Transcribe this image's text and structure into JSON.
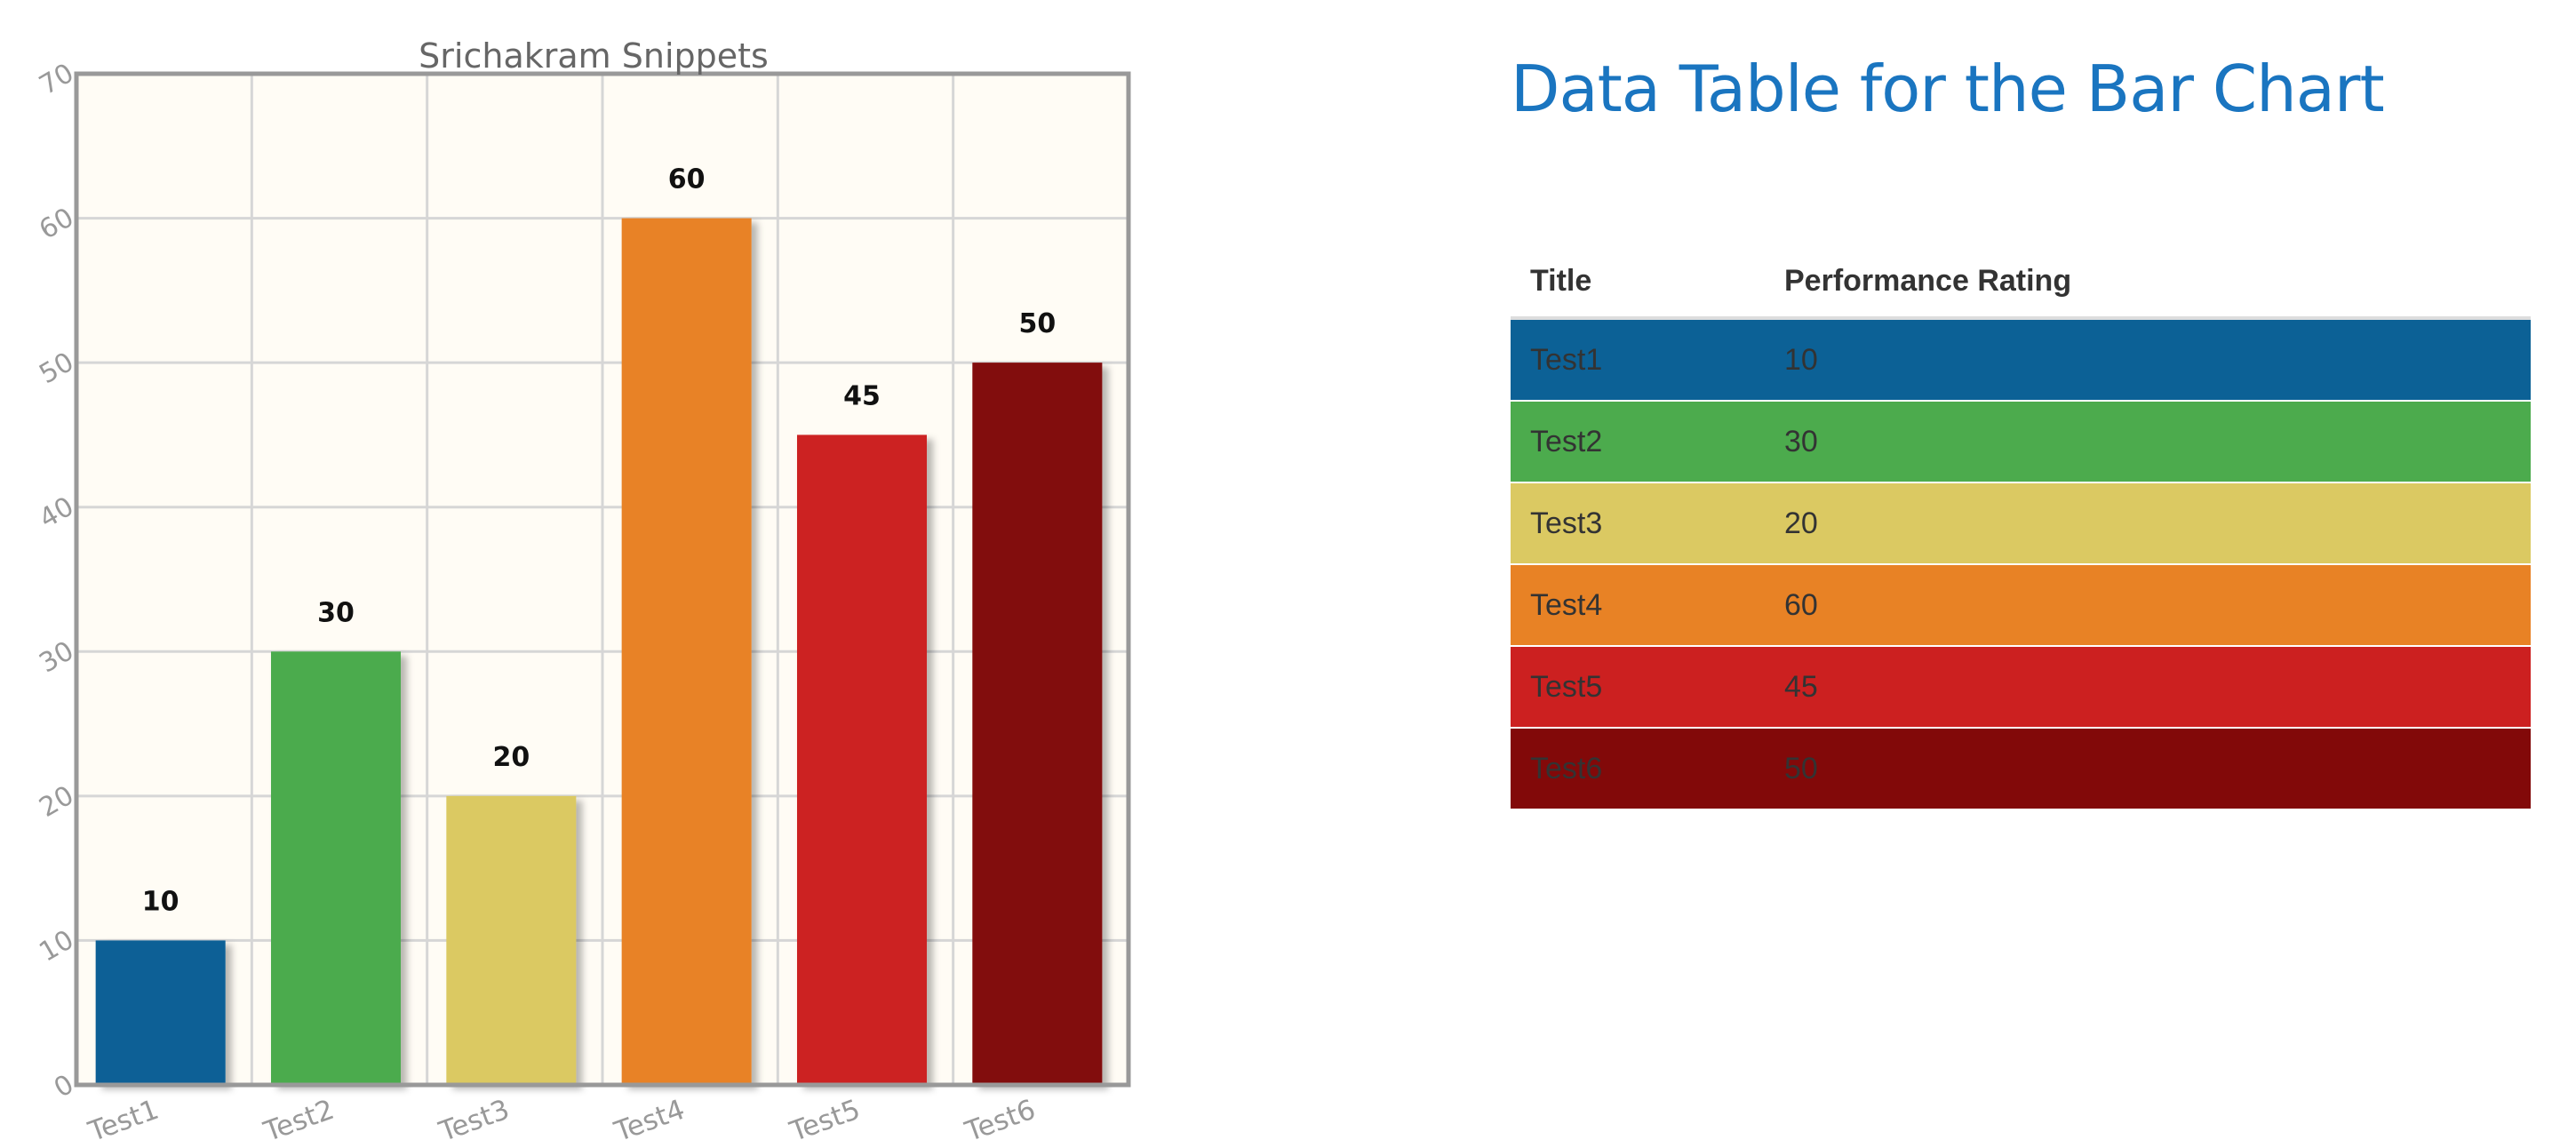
{
  "chart_data": {
    "type": "bar",
    "title": "Srichakram Snippets",
    "categories": [
      "Test1",
      "Test2",
      "Test3",
      "Test4",
      "Test5",
      "Test6"
    ],
    "values": [
      10,
      30,
      20,
      60,
      45,
      50
    ],
    "colors": [
      "#0c6196",
      "#4cab4d",
      "#dbc962",
      "#e88225",
      "#cc2020",
      "#820909"
    ],
    "ylim": [
      0,
      70
    ],
    "yticks": [
      0,
      10,
      20,
      30,
      40,
      50,
      60,
      70
    ],
    "xlabel": "",
    "ylabel": "",
    "grid": true,
    "legend": "none",
    "data_labels": true,
    "background_color": "#fffcf5"
  },
  "table": {
    "heading": "Data Table for the Bar Chart",
    "columns": [
      "Title",
      "Performance Rating"
    ],
    "rows": [
      {
        "title": "Test1",
        "rating": "10",
        "color": "#0c6196"
      },
      {
        "title": "Test2",
        "rating": "30",
        "color": "#4cab4d"
      },
      {
        "title": "Test3",
        "rating": "20",
        "color": "#dbc962"
      },
      {
        "title": "Test4",
        "rating": "60",
        "color": "#e88225"
      },
      {
        "title": "Test5",
        "rating": "45",
        "color": "#cc2020"
      },
      {
        "title": "Test6",
        "rating": "50",
        "color": "#820909"
      }
    ]
  }
}
